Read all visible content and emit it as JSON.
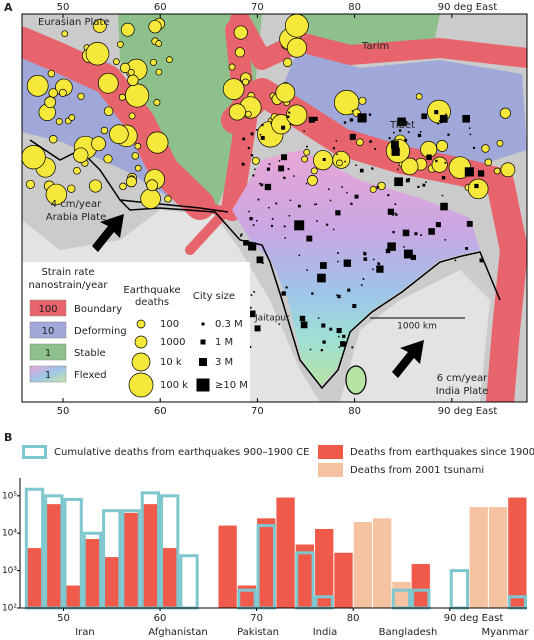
{
  "map": {
    "panel_label": "A",
    "xticks": [
      50,
      60,
      70,
      80,
      {
        "value": 90,
        "label": "90 deg East"
      }
    ],
    "labels": {
      "eurasian": "Eurasian Plate",
      "tarim": "Tarim",
      "tibet": "Tibet",
      "arabia": [
        "4 cm/year",
        "Arabia Plate"
      ],
      "jaitapur": "Jaitapur",
      "scale": "1000 km",
      "india": [
        "6 cm/year",
        "India Plate"
      ]
    },
    "legend": {
      "strain_title": [
        "Strain rate",
        "nanostrain/year"
      ],
      "strain": [
        {
          "value": "100",
          "label": "Boundary"
        },
        {
          "value": "10",
          "label": "Deforming"
        },
        {
          "value": "1",
          "label": "Stable"
        },
        {
          "value": "1",
          "label": "Flexed"
        }
      ],
      "quake_title": [
        "Earthquake",
        "deaths"
      ],
      "quake": [
        "100",
        "1000",
        "10 k",
        "100 k"
      ],
      "city_title": "City size",
      "city": [
        "0.3 M",
        "1 M",
        "3 M",
        "≥10 M"
      ]
    }
  },
  "chart_data": {
    "type": "histogram",
    "panel_label": "B",
    "bins": [
      46,
      48,
      50,
      52,
      54,
      56,
      58,
      60,
      62,
      64,
      66,
      68,
      70,
      72,
      74,
      76,
      78,
      80,
      82,
      84,
      86,
      88,
      90,
      92,
      94,
      96,
      98
    ],
    "series": [
      {
        "name": "Cumulative deaths from earthquakes 900–1900 CE",
        "color": "#7fc7cf",
        "style": "outline",
        "values": [
          150000,
          100000,
          80000,
          10000,
          40000,
          40000,
          120000,
          100000,
          2500,
          null,
          null,
          300,
          16000,
          null,
          3000,
          200,
          null,
          null,
          null,
          300,
          300,
          null,
          1000,
          null,
          null,
          200
        ]
      },
      {
        "name": "Deaths from earthquakes since 1900",
        "color": "#ef5a4a",
        "style": "fill",
        "values": [
          4000,
          60000,
          400,
          7000,
          2300,
          35000,
          60000,
          4000,
          null,
          null,
          16000,
          400,
          25000,
          90000,
          5000,
          13000,
          3000,
          null,
          null,
          null,
          1500,
          null,
          null,
          null,
          null,
          90000
        ]
      },
      {
        "name": "Deaths from 2001 tsunami",
        "color": "#f6c3a2",
        "style": "fill",
        "values": [
          null,
          null,
          null,
          null,
          null,
          null,
          null,
          null,
          null,
          null,
          null,
          null,
          null,
          null,
          null,
          null,
          null,
          20000,
          25000,
          500,
          null,
          null,
          null,
          50000,
          50000,
          null
        ]
      }
    ],
    "xlim": [
      45.5,
      98
    ],
    "xticks": [
      50,
      60,
      70,
      80,
      {
        "value": 90,
        "label": "90 deg East"
      }
    ],
    "ylim": [
      100,
      300000
    ],
    "log_y": true,
    "yticks": [
      {
        "value": 100000,
        "label": "10⁵"
      },
      {
        "value": 10000,
        "label": "10⁴"
      },
      {
        "value": 1000,
        "label": "10³"
      },
      {
        "value": 100,
        "label": "10²"
      }
    ],
    "annotations": [
      "Iran",
      "Afghanistan",
      "Pakistan",
      "India",
      "Bangladesh",
      "Myanmar"
    ]
  }
}
